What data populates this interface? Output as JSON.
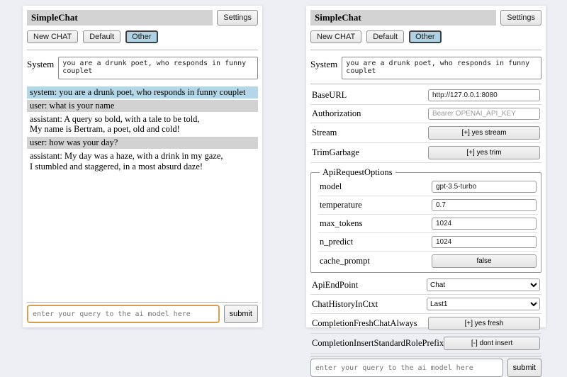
{
  "header": {
    "title": "SimpleChat",
    "settings_button": "Settings",
    "new_chat_button": "New CHAT",
    "session_default_button": "Default",
    "session_other_button": "Other",
    "active_session": "Other",
    "system_label": "System",
    "system_prompt": "you are a drunk poet, who responds in funny couplet"
  },
  "chat": {
    "messages": [
      {
        "role": "system",
        "text": "system: you are a drunk poet, who responds in funny couplet"
      },
      {
        "role": "user",
        "text": "user: what is your name"
      },
      {
        "role": "assistant",
        "text": "assistant: A query so bold, with a tale to be told,\nMy name is Bertram, a poet, old and cold!"
      },
      {
        "role": "user",
        "text": "user: how was your day?"
      },
      {
        "role": "assistant",
        "text": "assistant: My day was a haze, with a drink in my gaze,\nI stumbled and staggered, in a most absurd daze!"
      }
    ]
  },
  "settings": {
    "base_url": {
      "label": "BaseURL",
      "value": "http://127.0.0.1:8080"
    },
    "authorization": {
      "label": "Authorization",
      "placeholder": "Bearer OPENAI_API_KEY"
    },
    "stream": {
      "label": "Stream",
      "value": "[+] yes stream"
    },
    "trim_garbage": {
      "label": "TrimGarbage",
      "value": "[+] yes trim"
    },
    "api_request_options": {
      "legend": "ApiRequestOptions",
      "model": {
        "label": "model",
        "value": "gpt-3.5-turbo"
      },
      "temperature": {
        "label": "temperature",
        "value": "0.7"
      },
      "max_tokens": {
        "label": "max_tokens",
        "value": "1024"
      },
      "n_predict": {
        "label": "n_predict",
        "value": "1024"
      },
      "cache_prompt": {
        "label": "cache_prompt",
        "value": "false"
      }
    },
    "api_endpoint": {
      "label": "ApiEndPoint",
      "value": "Chat"
    },
    "chat_history_in_ctxt": {
      "label": "ChatHistoryInCtxt",
      "value": "Last1"
    },
    "completion_fresh_chat_always": {
      "label": "CompletionFreshChatAlways",
      "value": "[+] yes fresh"
    },
    "completion_insert_standard_role_prefix": {
      "label": "CompletionInsertStandardRolePrefix",
      "value": "[-] dont insert"
    }
  },
  "footer": {
    "query_placeholder": "enter your query to the ai model here",
    "submit_label": "submit"
  },
  "colors": {
    "page_bg": "#edeff4",
    "titlebar_bg": "#d3d3d3",
    "active_session_bg": "#aed2e3",
    "system_msg_bg": "#b3d7e6",
    "user_msg_bg": "#d2d2d2",
    "focused_input_border": "#d79f4f"
  }
}
